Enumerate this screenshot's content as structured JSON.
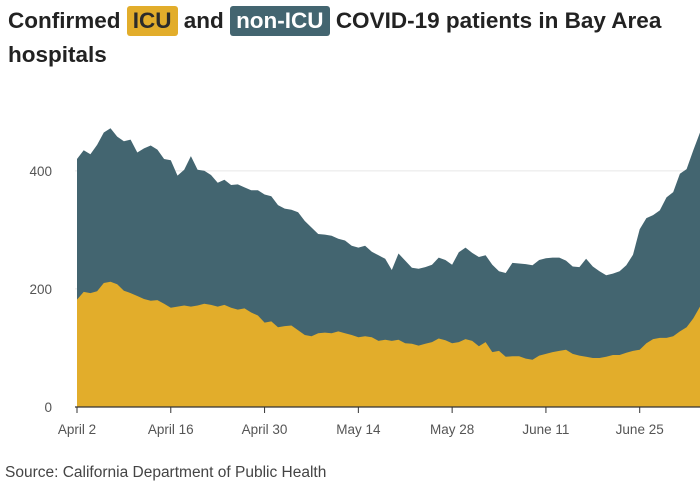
{
  "title": {
    "part1": "Confirmed",
    "icu": "ICU",
    "part2": "and",
    "nonicu": "non-ICU",
    "part3": "COVID-19 patients in Bay Area hospitals"
  },
  "source": "Source: California Department of Public Health",
  "colors": {
    "icu": "#e2ad2b",
    "nonicu": "#436570",
    "grid": "#e6e6e6",
    "axis": "#333333"
  },
  "chart_data": {
    "type": "area",
    "stacked": true,
    "title": "Confirmed ICU and non-ICU COVID-19 patients in Bay Area hospitals",
    "xlabel": "",
    "ylabel": "",
    "ylim": [
      0,
      520
    ],
    "yticks": [
      0,
      200,
      400
    ],
    "xticks": [
      {
        "day": 0,
        "label": "April 2"
      },
      {
        "day": 14,
        "label": "April 16"
      },
      {
        "day": 28,
        "label": "April 30"
      },
      {
        "day": 42,
        "label": "May 14"
      },
      {
        "day": 56,
        "label": "May 28"
      },
      {
        "day": 70,
        "label": "June 11"
      },
      {
        "day": 84,
        "label": "June 25"
      }
    ],
    "day_range": [
      0,
      93
    ],
    "series": [
      {
        "name": "ICU",
        "values": [
          182,
          195,
          193,
          196,
          210,
          212,
          208,
          197,
          193,
          188,
          183,
          180,
          181,
          175,
          168,
          170,
          172,
          170,
          172,
          175,
          173,
          170,
          173,
          168,
          165,
          167,
          160,
          155,
          143,
          145,
          135,
          137,
          138,
          130,
          122,
          120,
          125,
          126,
          125,
          128,
          125,
          122,
          118,
          120,
          118,
          112,
          114,
          112,
          114,
          108,
          107,
          104,
          107,
          110,
          116,
          113,
          108,
          110,
          115,
          112,
          103,
          110,
          93,
          95,
          85,
          86,
          86,
          82,
          80,
          87,
          90,
          93,
          95,
          97,
          90,
          87,
          85,
          83,
          83,
          85,
          88,
          88,
          92,
          95,
          97,
          108,
          115,
          117,
          117,
          120,
          128,
          135,
          150,
          170
        ]
      },
      {
        "name": "non-ICU",
        "values": [
          238,
          240,
          235,
          248,
          255,
          260,
          250,
          253,
          260,
          243,
          255,
          263,
          255,
          245,
          250,
          222,
          230,
          255,
          230,
          225,
          220,
          210,
          212,
          208,
          212,
          205,
          207,
          212,
          217,
          212,
          207,
          199,
          196,
          200,
          193,
          184,
          168,
          166,
          165,
          157,
          157,
          151,
          152,
          153,
          145,
          145,
          137,
          120,
          146,
          140,
          129,
          130,
          130,
          131,
          137,
          136,
          133,
          152,
          155,
          149,
          151,
          147,
          148,
          135,
          142,
          158,
          157,
          160,
          160,
          162,
          162,
          160,
          158,
          151,
          148,
          150,
          166,
          155,
          147,
          138,
          138,
          142,
          148,
          163,
          204,
          212,
          210,
          216,
          238,
          244,
          267,
          268,
          285,
          295
        ]
      }
    ]
  }
}
